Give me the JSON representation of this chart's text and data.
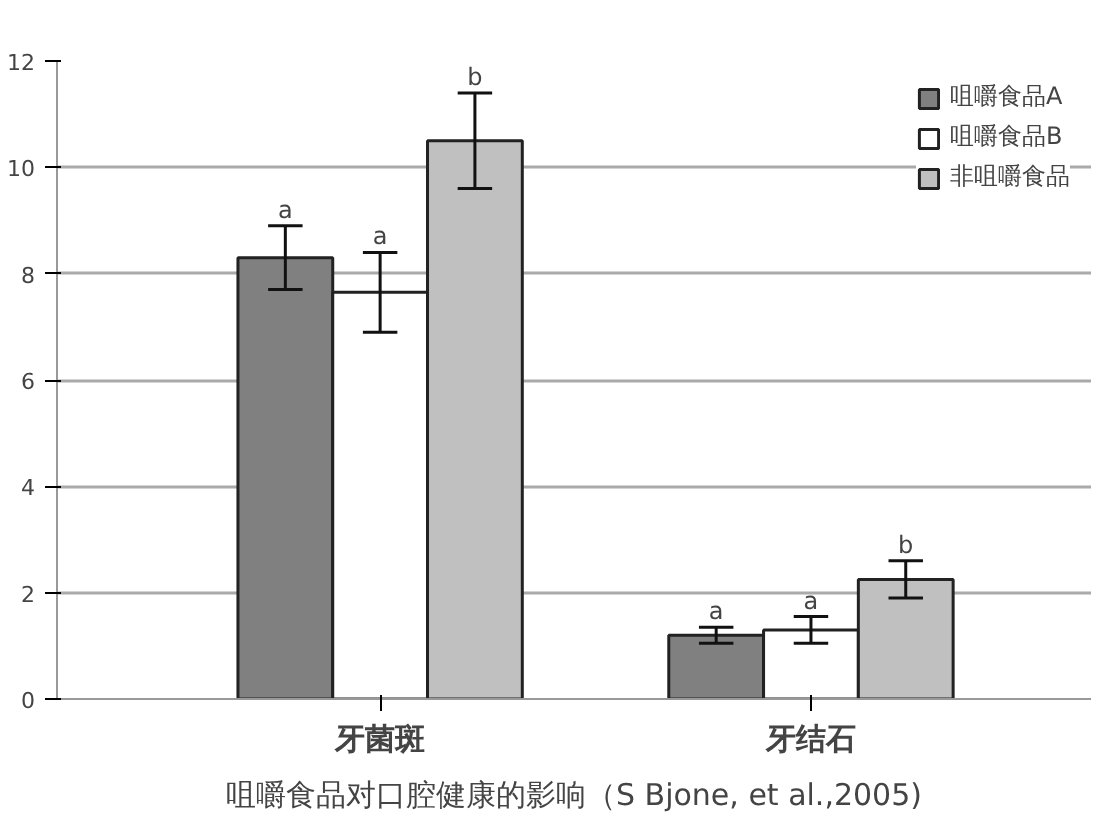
{
  "chart_data": {
    "type": "bar",
    "title": "咀嚼食品对口腔健康的影响（S Bjone, et al.,2005)",
    "categories": [
      "牙菌斑",
      "牙结石"
    ],
    "series": [
      {
        "name": "咀嚼食品A",
        "color": "#808080",
        "values": [
          8.3,
          1.2
        ],
        "errors": [
          0.6,
          0.15
        ],
        "value_labels": [
          "a",
          "a"
        ]
      },
      {
        "name": "咀嚼食品B",
        "color": "#ffffff",
        "values": [
          7.65,
          1.3
        ],
        "errors": [
          0.75,
          0.25
        ],
        "value_labels": [
          "a",
          "a"
        ]
      },
      {
        "name": "非咀嚼食品",
        "color": "#c0c0c0",
        "values": [
          10.5,
          2.25
        ],
        "errors": [
          0.9,
          0.35
        ],
        "value_labels": [
          "b",
          "b"
        ]
      }
    ],
    "ylim": [
      0,
      12
    ],
    "yticks": [
      0,
      2,
      4,
      6,
      8,
      10,
      12
    ],
    "grid": "y",
    "legend": "top right"
  }
}
